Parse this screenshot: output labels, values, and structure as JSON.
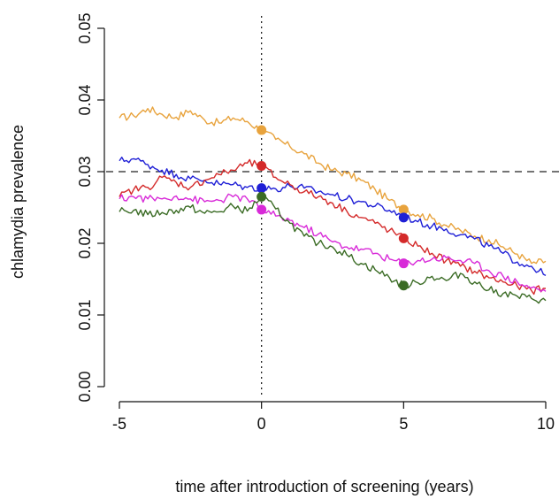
{
  "chart_data": {
    "type": "line",
    "title": "",
    "xlabel": "time after introduction of screening (years)",
    "ylabel": "chlamydia prevalence",
    "xlim": [
      -5,
      10
    ],
    "ylim": [
      0,
      0.05
    ],
    "xticks": [
      -5,
      0,
      5,
      10
    ],
    "xtick_labels": [
      "-5",
      "0",
      "5",
      "10"
    ],
    "yticks": [
      0,
      0.01,
      0.02,
      0.03,
      0.04,
      0.05
    ],
    "ytick_labels": [
      "0.00",
      "0.01",
      "0.02",
      "0.03",
      "0.04",
      "0.05"
    ],
    "grid": false,
    "legend": false,
    "reference_lines": {
      "horizontal": {
        "y": 0.03,
        "style": "dashed",
        "color": "#222222"
      },
      "vertical": {
        "x": 0,
        "style": "dotted",
        "color": "#222222"
      }
    },
    "series": [
      {
        "color": "#e8a33d",
        "x": [
          -5,
          -4.5,
          -4,
          -3.5,
          -3,
          -2.5,
          -2,
          -1.5,
          -1,
          -0.5,
          0,
          0.5,
          1,
          1.5,
          2,
          2.5,
          3,
          3.5,
          4,
          4.5,
          5,
          5.5,
          6,
          6.5,
          7,
          7.5,
          8,
          8.5,
          9,
          9.5,
          10
        ],
        "y": [
          0.0375,
          0.0378,
          0.0388,
          0.038,
          0.0376,
          0.0385,
          0.0372,
          0.0368,
          0.0375,
          0.037,
          0.0358,
          0.0345,
          0.0335,
          0.0325,
          0.0312,
          0.0302,
          0.0297,
          0.0288,
          0.0275,
          0.026,
          0.0248,
          0.024,
          0.0235,
          0.0225,
          0.0218,
          0.021,
          0.0205,
          0.0195,
          0.0185,
          0.0172,
          0.0175
        ],
        "markers": [
          {
            "x": 0,
            "y": 0.0358
          },
          {
            "x": 5,
            "y": 0.0247
          }
        ]
      },
      {
        "color": "#1f1fd6",
        "x": [
          -5,
          -4.5,
          -4,
          -3.5,
          -3,
          -2.5,
          -2,
          -1.5,
          -1,
          -0.5,
          0,
          0.5,
          1,
          1.5,
          2,
          2.5,
          3,
          3.5,
          4,
          4.5,
          5,
          5.5,
          6,
          6.5,
          7,
          7.5,
          8,
          8.5,
          9,
          9.5,
          10
        ],
        "y": [
          0.0315,
          0.0318,
          0.031,
          0.0302,
          0.0296,
          0.029,
          0.0288,
          0.0283,
          0.0282,
          0.0278,
          0.0277,
          0.0276,
          0.028,
          0.0277,
          0.0272,
          0.0268,
          0.0262,
          0.0258,
          0.0252,
          0.0246,
          0.0238,
          0.023,
          0.0224,
          0.022,
          0.0212,
          0.0206,
          0.0196,
          0.0186,
          0.0174,
          0.0168,
          0.0155
        ],
        "markers": [
          {
            "x": 0,
            "y": 0.0277
          },
          {
            "x": 5,
            "y": 0.0236
          }
        ]
      },
      {
        "color": "#d42a2a",
        "x": [
          -5,
          -4.5,
          -4,
          -3.5,
          -3,
          -2.5,
          -2,
          -1.5,
          -1,
          -0.5,
          0,
          0.5,
          1,
          1.5,
          2,
          2.5,
          3,
          3.5,
          4,
          4.5,
          5,
          5.5,
          6,
          6.5,
          7,
          7.5,
          8,
          8.5,
          9,
          9.5,
          10
        ],
        "y": [
          0.0265,
          0.0275,
          0.0278,
          0.0292,
          0.0285,
          0.0278,
          0.0288,
          0.0296,
          0.0302,
          0.0312,
          0.0308,
          0.0292,
          0.0282,
          0.0272,
          0.0265,
          0.0256,
          0.0245,
          0.0236,
          0.0228,
          0.0218,
          0.0207,
          0.0196,
          0.0186,
          0.0176,
          0.0168,
          0.0161,
          0.0152,
          0.0146,
          0.014,
          0.0134,
          0.0137
        ],
        "markers": [
          {
            "x": 0,
            "y": 0.0308
          },
          {
            "x": 5,
            "y": 0.0207
          }
        ]
      },
      {
        "color": "#d82ad8",
        "x": [
          -5,
          -4.5,
          -4,
          -3.5,
          -3,
          -2.5,
          -2,
          -1.5,
          -1,
          -0.5,
          0,
          0.5,
          1,
          1.5,
          2,
          2.5,
          3,
          3.5,
          4,
          4.5,
          5,
          5.5,
          6,
          6.5,
          7,
          7.5,
          8,
          8.5,
          9,
          9.5,
          10
        ],
        "y": [
          0.0262,
          0.0265,
          0.0262,
          0.0262,
          0.0266,
          0.0262,
          0.0258,
          0.026,
          0.0265,
          0.0262,
          0.0247,
          0.0238,
          0.0232,
          0.0222,
          0.0213,
          0.0202,
          0.0195,
          0.0192,
          0.0186,
          0.0178,
          0.0172,
          0.0176,
          0.0178,
          0.018,
          0.0176,
          0.0172,
          0.0162,
          0.0154,
          0.0146,
          0.0138,
          0.0133
        ],
        "markers": [
          {
            "x": 0,
            "y": 0.0247
          },
          {
            "x": 5,
            "y": 0.0172
          }
        ]
      },
      {
        "color": "#3a6b24",
        "x": [
          -5,
          -4.5,
          -4,
          -3.5,
          -3,
          -2.5,
          -2,
          -1.5,
          -1,
          -0.5,
          0,
          0.5,
          1,
          1.5,
          2,
          2.5,
          3,
          3.5,
          4,
          4.5,
          5,
          5.5,
          6,
          6.5,
          7,
          7.5,
          8,
          8.5,
          9,
          9.5,
          10
        ],
        "y": [
          0.0244,
          0.0246,
          0.024,
          0.0243,
          0.0246,
          0.025,
          0.0242,
          0.0244,
          0.0252,
          0.0245,
          0.0265,
          0.0248,
          0.0228,
          0.021,
          0.02,
          0.0195,
          0.0184,
          0.0172,
          0.0163,
          0.0152,
          0.0141,
          0.0145,
          0.0154,
          0.0148,
          0.0158,
          0.0146,
          0.0135,
          0.013,
          0.0126,
          0.0123,
          0.012
        ],
        "markers": [
          {
            "x": 0,
            "y": 0.0265
          },
          {
            "x": 5,
            "y": 0.0141
          }
        ]
      }
    ]
  }
}
